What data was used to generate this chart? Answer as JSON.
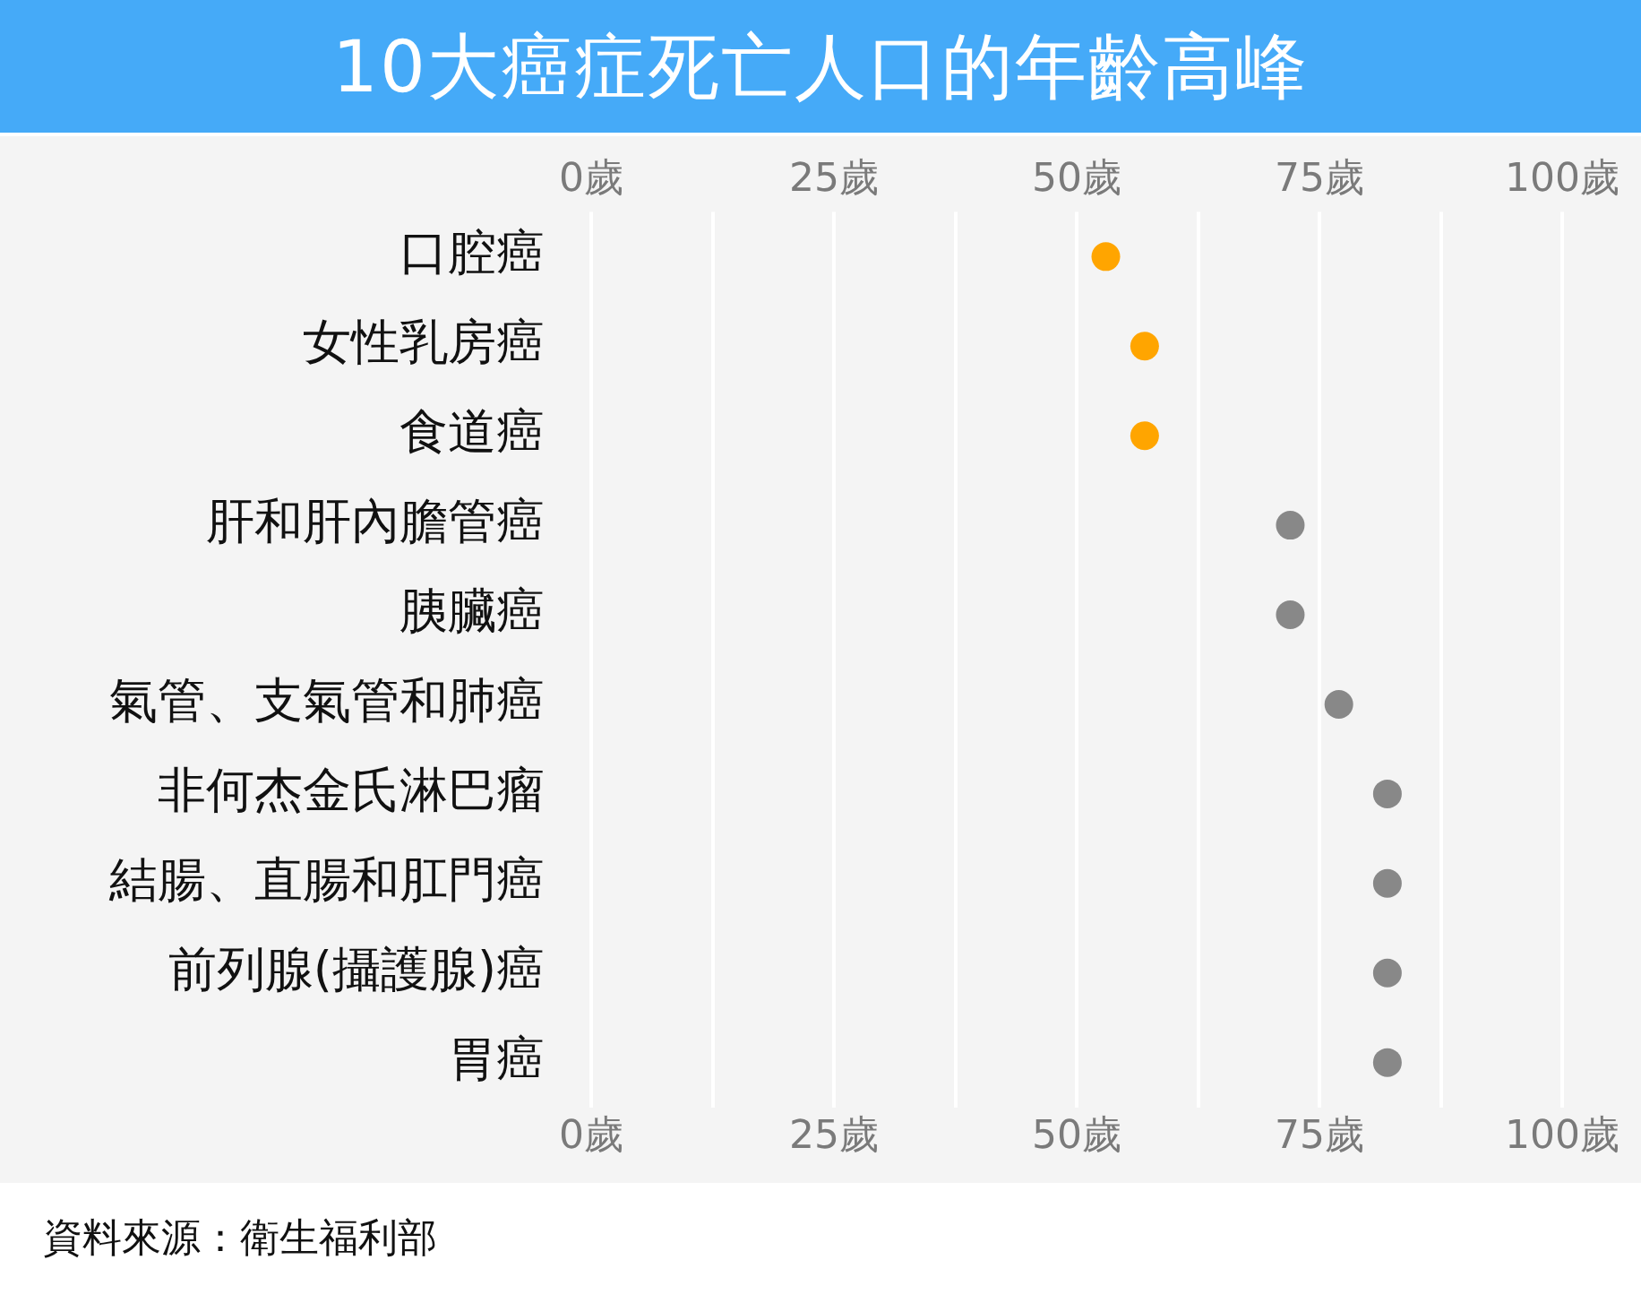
{
  "chart_data": {
    "type": "scatter",
    "orientation": "horizontal",
    "title": "10大癌症死亡人口的年齡高峰",
    "categories": [
      "口腔癌",
      "女性乳房癌",
      "食道癌",
      "肝和肝內膽管癌",
      "胰臟癌",
      "氣管、支氣管和肺癌",
      "非何杰金氏淋巴瘤",
      "結腸、直腸和肛門癌",
      "前列腺(攝護腺)癌",
      "胃癌"
    ],
    "values": [
      53,
      57,
      57,
      72,
      72,
      77,
      82,
      82,
      82,
      82
    ],
    "colors": [
      "#ffa500",
      "#ffa500",
      "#ffa500",
      "#888888",
      "#888888",
      "#888888",
      "#888888",
      "#888888",
      "#888888",
      "#888888"
    ],
    "xlim": [
      0,
      100
    ],
    "xticks": [
      {
        "value": 0,
        "label": "0歲"
      },
      {
        "value": 12.5,
        "label": null
      },
      {
        "value": 25,
        "label": "25歲"
      },
      {
        "value": 37.5,
        "label": null
      },
      {
        "value": 50,
        "label": "50歲"
      },
      {
        "value": 62.5,
        "label": null
      },
      {
        "value": 75,
        "label": "75歲"
      },
      {
        "value": 87.5,
        "label": null
      },
      {
        "value": 100,
        "label": "100歲"
      }
    ],
    "x2lim": [
      0,
      100
    ],
    "x2ticks": [
      {
        "value": 0,
        "label": "0歲"
      },
      {
        "value": 12.5,
        "label": null
      },
      {
        "value": 25,
        "label": "25歲"
      },
      {
        "value": 37.5,
        "label": null
      },
      {
        "value": 50,
        "label": "50歲"
      },
      {
        "value": 62.5,
        "label": null
      },
      {
        "value": 75,
        "label": "75歲"
      },
      {
        "value": 87.5,
        "label": null
      },
      {
        "value": 100,
        "label": "100歲"
      }
    ],
    "grid": "x",
    "legend": false,
    "marker": "circle",
    "annotations": [
      "資料來源：衛生福利部"
    ]
  }
}
